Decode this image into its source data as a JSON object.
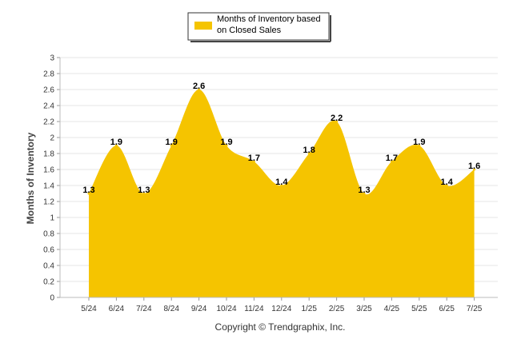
{
  "legend": {
    "label_line1": "Months of Inventory based",
    "label_line2": "on Closed Sales",
    "swatch_color": "#F5C400"
  },
  "ylabel": "Months of Inventory",
  "copyright": "Copyright © Trendgraphix, Inc.",
  "chart_data": {
    "type": "area",
    "categories": [
      "5/24",
      "6/24",
      "7/24",
      "8/24",
      "9/24",
      "10/24",
      "11/24",
      "12/24",
      "1/25",
      "2/25",
      "3/25",
      "4/25",
      "5/25",
      "6/25",
      "7/25"
    ],
    "series": [
      {
        "name": "Months of Inventory based on Closed Sales",
        "values": [
          1.3,
          1.9,
          1.3,
          1.9,
          2.6,
          1.9,
          1.7,
          1.4,
          1.8,
          2.2,
          1.3,
          1.7,
          1.9,
          1.4,
          1.6
        ],
        "data_labels": [
          "1.3",
          "1.9",
          "1.3",
          "1.9",
          "2.6",
          "1.9",
          "1.7",
          "1.4",
          "1.8",
          "2.2",
          "1.3",
          "1.7",
          "1.9",
          "1.4",
          "1.6"
        ]
      }
    ],
    "ylim": [
      0,
      3
    ],
    "yticks": [
      "0",
      "0.2",
      "0.4",
      "0.6",
      "0.8",
      "1",
      "1.2",
      "1.4",
      "1.6",
      "1.8",
      "2",
      "2.2",
      "2.4",
      "2.6",
      "2.8",
      "3"
    ],
    "ytick_values": [
      0,
      0.2,
      0.4,
      0.6,
      0.8,
      1,
      1.2,
      1.4,
      1.6,
      1.8,
      2,
      2.2,
      2.4,
      2.6,
      2.8,
      3
    ],
    "xlabel": "",
    "ylabel": "Months of Inventory",
    "grid": true,
    "legend_position": "top-center",
    "fill_color": "#F5C400",
    "grid_color": "#E6E6E6"
  }
}
